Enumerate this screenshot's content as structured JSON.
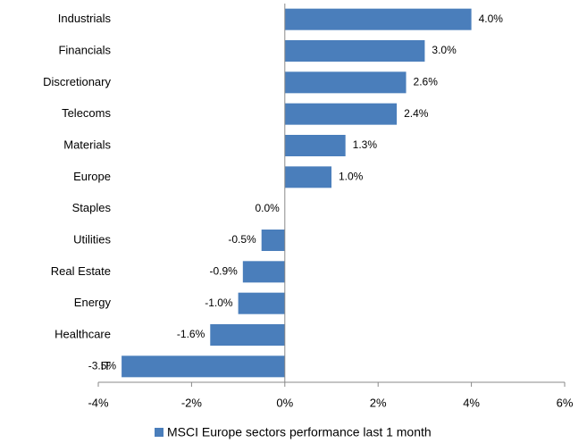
{
  "chart_data": {
    "type": "bar",
    "orientation": "horizontal",
    "categories": [
      "Industrials",
      "Financials",
      "Discretionary",
      "Telecoms",
      "Materials",
      "Europe",
      "Staples",
      "Utilities",
      "Real Estate",
      "Energy",
      "Healthcare",
      "IT"
    ],
    "series": [
      {
        "name": "MSCI Europe sectors performance last 1 month",
        "color": "#4a7ebb",
        "values": [
          4.0,
          3.0,
          2.6,
          2.4,
          1.3,
          1.0,
          0.0,
          -0.5,
          -0.9,
          -1.0,
          -1.6,
          -3.5
        ],
        "value_labels": [
          "4.0%",
          "3.0%",
          "2.6%",
          "2.4%",
          "1.3%",
          "1.0%",
          "0.0%",
          "-0.5%",
          "-0.9%",
          "-1.0%",
          "-1.6%",
          "-3.5%"
        ]
      }
    ],
    "xlim": [
      -4,
      6
    ],
    "xticks": [
      {
        "value": -4,
        "label": "-4%"
      },
      {
        "value": -2,
        "label": "-2%"
      },
      {
        "value": 0,
        "label": "0%"
      },
      {
        "value": 2,
        "label": "2%"
      },
      {
        "value": 4,
        "label": "4%"
      },
      {
        "value": 6,
        "label": "6%"
      }
    ],
    "legend": "bottom"
  }
}
